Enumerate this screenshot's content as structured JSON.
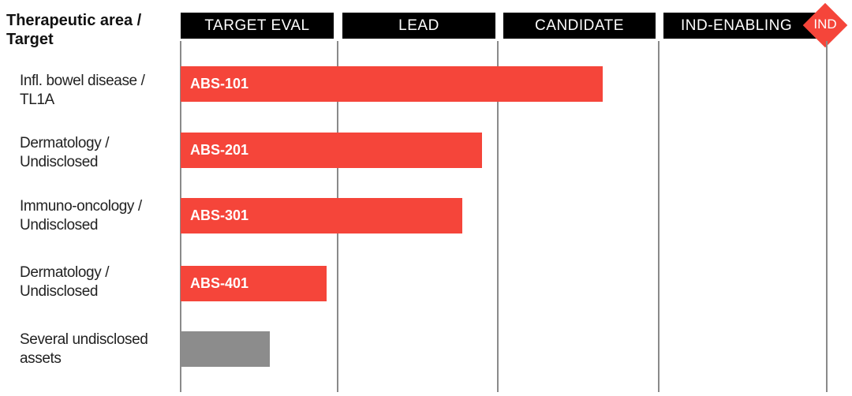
{
  "header": {
    "title": "Therapeutic area / Target"
  },
  "stages": [
    "TARGET EVAL",
    "LEAD",
    "CANDIDATE",
    "IND-ENABLING"
  ],
  "milestone": {
    "label": "IND",
    "color": "#f5453a"
  },
  "colors": {
    "active": "#f5453a",
    "undisclosed": "#8c8c8c"
  },
  "chart_data": {
    "type": "bar",
    "orientation": "horizontal",
    "categories": [
      "Infl. bowel disease / TL1A",
      "Dermatology / Undisclosed",
      "Immuno-oncology / Undisclosed",
      "Dermatology / Undisclosed",
      "Several undisclosed assets"
    ],
    "category_lines": [
      [
        "Infl. bowel disease /",
        "TL1A"
      ],
      [
        "Dermatology /",
        "Undisclosed"
      ],
      [
        "Immuno-oncology /",
        "Undisclosed"
      ],
      [
        "Dermatology /",
        "Undisclosed"
      ],
      [
        "Several undisclosed",
        "assets"
      ]
    ],
    "bar_labels": [
      "ABS-101",
      "ABS-201",
      "ABS-301",
      "ABS-401",
      ""
    ],
    "values": [
      2.65,
      1.9,
      1.78,
      0.93,
      0.57
    ],
    "bar_colors": [
      "#f5453a",
      "#f5453a",
      "#f5453a",
      "#f5453a",
      "#8c8c8c"
    ],
    "x_categories": [
      "TARGET EVAL",
      "LEAD",
      "CANDIDATE",
      "IND-ENABLING"
    ],
    "xlim": [
      0,
      4
    ],
    "grid": true
  }
}
